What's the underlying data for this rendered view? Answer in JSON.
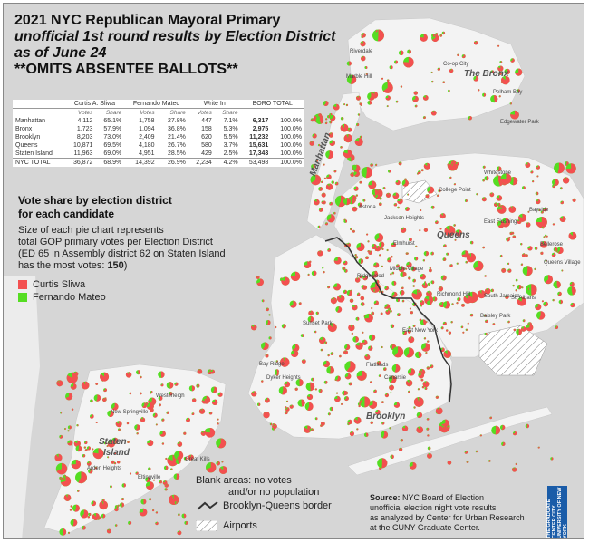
{
  "title": {
    "line1": "2021 NYC Republican Mayoral Primary",
    "line2": "unofficial 1st round results by Election District",
    "line3": "as of June 24",
    "line4": "**OMITS ABSENTEE BALLOTS**"
  },
  "results_table": {
    "candidates": [
      "Curtis A. Sliwa",
      "Fernando Mateo",
      "Write In",
      "BORO TOTAL"
    ],
    "subheaders": [
      "Votes",
      "Share",
      "Votes",
      "Share",
      "Votes",
      "Share"
    ],
    "rows": [
      {
        "boro": "Manhattan",
        "sliwa_votes": "4,112",
        "sliwa_share": "65.1%",
        "mateo_votes": "1,758",
        "mateo_share": "27.8%",
        "write_votes": "447",
        "write_share": "7.1%",
        "total_votes": "6,317",
        "total_share": "100.0%"
      },
      {
        "boro": "Bronx",
        "sliwa_votes": "1,723",
        "sliwa_share": "57.9%",
        "mateo_votes": "1,094",
        "mateo_share": "36.8%",
        "write_votes": "158",
        "write_share": "5.3%",
        "total_votes": "2,975",
        "total_share": "100.0%"
      },
      {
        "boro": "Brooklyn",
        "sliwa_votes": "8,203",
        "sliwa_share": "73.0%",
        "mateo_votes": "2,409",
        "mateo_share": "21.4%",
        "write_votes": "620",
        "write_share": "5.5%",
        "total_votes": "11,232",
        "total_share": "100.0%"
      },
      {
        "boro": "Queens",
        "sliwa_votes": "10,871",
        "sliwa_share": "69.5%",
        "mateo_votes": "4,180",
        "mateo_share": "26.7%",
        "write_votes": "580",
        "write_share": "3.7%",
        "total_votes": "15,631",
        "total_share": "100.0%"
      },
      {
        "boro": "Staten Island",
        "sliwa_votes": "11,963",
        "sliwa_share": "69.0%",
        "mateo_votes": "4,951",
        "mateo_share": "28.5%",
        "write_votes": "429",
        "write_share": "2.5%",
        "total_votes": "17,343",
        "total_share": "100.0%"
      },
      {
        "boro": "NYC TOTAL",
        "sliwa_votes": "36,872",
        "sliwa_share": "68.9%",
        "mateo_votes": "14,392",
        "mateo_share": "26.9%",
        "write_votes": "2,234",
        "write_share": "4.2%",
        "total_votes": "53,498",
        "total_share": "100.0%"
      }
    ]
  },
  "legend": {
    "title_line1": "Vote share by election district",
    "title_line2": "for each candidate",
    "desc_line1": "Size of each pie chart represents",
    "desc_line2": "total GOP primary votes per Election District",
    "desc_line3": "(ED 65 in Assembly district 62 on Staten Island",
    "desc_line4_prefix": "has the most votes: ",
    "desc_line4_value": "150",
    "desc_line4_suffix": ")",
    "items": [
      {
        "label": "Curtis Sliwa",
        "color": "#f35050"
      },
      {
        "label": "Fernando Mateo",
        "color": "#55dd22"
      }
    ]
  },
  "notes": {
    "blank_line1": "Blank areas: no votes",
    "blank_line2": "and/or no population",
    "border_label": "Brooklyn-Queens border",
    "airports_label": "Airports"
  },
  "source": {
    "prefix": "Source:",
    "line1": " NYC Board of Election",
    "line2": "unofficial election night vote results",
    "line3": "as analyzed by Center for Urban Research",
    "line4": "at the CUNY Graduate Center."
  },
  "logo": {
    "text": "THE GRADUATE CENTER CITY UNIVERSITY OF NEW YORK"
  },
  "map_labels": {
    "bronx": "The Bronx",
    "manhattan": "Manhattan",
    "queens": "Queens",
    "brooklyn": "Brooklyn",
    "staten_island_1": "Staten",
    "staten_island_2": "Island",
    "places": [
      "Co-op City",
      "Edgewater Park",
      "Whitestone",
      "College Point",
      "Bayside",
      "East Flushing",
      "Bellerose",
      "Astoria",
      "Jackson Heights",
      "Elmhurst",
      "Middle Village",
      "Ridgewood",
      "Richmond Hill",
      "South Jamaica",
      "St. Albans",
      "Queens Village",
      "East New York",
      "Canarsie",
      "Bay Ridge",
      "Dyker Heights",
      "Westerleigh",
      "New Springville",
      "Great Kills",
      "Arden Heights",
      "Eltingville",
      "Sunset Park",
      "Flatlands",
      "Baisley Park",
      "Marble Hill",
      "Riverdale",
      "Pelham Bay"
    ]
  },
  "colors": {
    "sliwa": "#f35050",
    "mateo": "#55dd22",
    "land": "#f2f2f2",
    "water": "#d4d4d4",
    "border": "#333333"
  }
}
